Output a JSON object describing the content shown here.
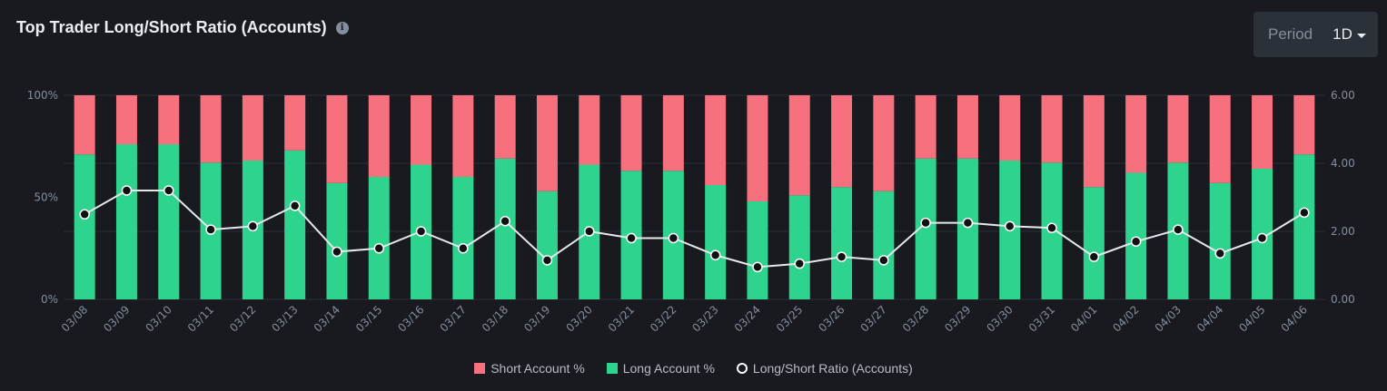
{
  "header": {
    "title": "Top Trader Long/Short Ratio (Accounts)",
    "info_icon": "info-icon"
  },
  "period": {
    "label": "Period",
    "value": "1D"
  },
  "colors": {
    "short": "#f6707e",
    "long": "#2ed38d",
    "line": "#e6e8ea",
    "grid": "#2b2f36"
  },
  "chart_data": {
    "type": "bar",
    "stacked": true,
    "categories": [
      "03/08",
      "03/09",
      "03/10",
      "03/11",
      "03/12",
      "03/13",
      "03/14",
      "03/15",
      "03/16",
      "03/17",
      "03/18",
      "03/19",
      "03/20",
      "03/21",
      "03/22",
      "03/23",
      "03/24",
      "03/25",
      "03/26",
      "03/27",
      "03/28",
      "03/29",
      "03/30",
      "03/31",
      "04/01",
      "04/02",
      "04/03",
      "04/04",
      "04/05",
      "04/06"
    ],
    "series": [
      {
        "name": "Short Account %",
        "axis": "left",
        "values": [
          29,
          24,
          24,
          33,
          32,
          27,
          43,
          40,
          34,
          40,
          31,
          47,
          34,
          37,
          37,
          44,
          52,
          49,
          45,
          47,
          31,
          31,
          32,
          33,
          45,
          38,
          33,
          43,
          36,
          29
        ]
      },
      {
        "name": "Long Account %",
        "axis": "left",
        "values": [
          71,
          76,
          76,
          67,
          68,
          73,
          57,
          60,
          66,
          60,
          69,
          53,
          66,
          63,
          63,
          56,
          48,
          51,
          55,
          53,
          69,
          69,
          68,
          67,
          55,
          62,
          67,
          57,
          64,
          71
        ]
      },
      {
        "name": "Long/Short Ratio (Accounts)",
        "type": "line",
        "axis": "right",
        "values": [
          2.5,
          3.2,
          3.2,
          2.05,
          2.15,
          2.75,
          1.4,
          1.5,
          2.0,
          1.5,
          2.3,
          1.15,
          2.0,
          1.8,
          1.8,
          1.3,
          0.95,
          1.05,
          1.25,
          1.15,
          2.25,
          2.25,
          2.15,
          2.1,
          1.25,
          1.7,
          2.05,
          1.35,
          1.8,
          2.55
        ]
      }
    ],
    "left_axis": {
      "ticks": [
        "0%",
        "50%",
        "100%"
      ],
      "range": [
        0,
        100
      ]
    },
    "right_axis": {
      "ticks": [
        "0.00",
        "2.00",
        "4.00",
        "6.00"
      ],
      "range": [
        0,
        6
      ]
    },
    "legend": [
      "Short Account %",
      "Long Account %",
      "Long/Short Ratio (Accounts)"
    ],
    "legend_position": "bottom",
    "grid": true
  }
}
